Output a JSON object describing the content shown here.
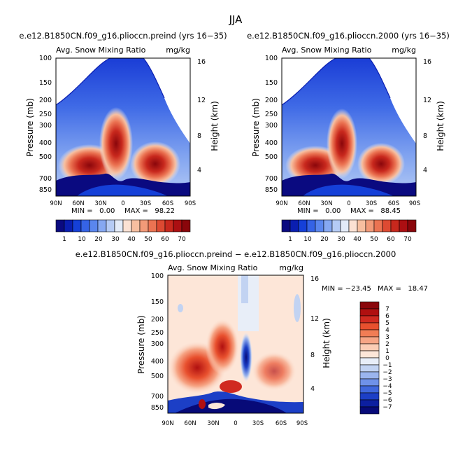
{
  "figure": {
    "title": "JJA"
  },
  "chart_data": [
    {
      "type": "heatmap",
      "title": "e.e12.B1850CN.f09_g16.plioccn.preind (yrs 16−35)",
      "subtitle_left": "Avg. Snow Mixing Ratio",
      "units": "mg/kg",
      "ylabel": "Pressure (mb)",
      "ylabel_right": "Height (km)",
      "x_ticks": [
        "90N",
        "60N",
        "30N",
        "0",
        "30S",
        "60S",
        "90S"
      ],
      "y_ticks": [
        "100",
        "150",
        "200",
        "250",
        "300",
        "400",
        "500",
        "700",
        "850"
      ],
      "y_ticks_right": [
        "16",
        "12",
        "8",
        "4"
      ],
      "min_text": "MIN =   0.00",
      "max_text": "MAX =   98.22",
      "stats": {
        "min": 0.0,
        "max": 98.22
      },
      "colorbar_labels": [
        "1",
        "10",
        "20",
        "30",
        "40",
        "50",
        "60",
        "70"
      ]
    },
    {
      "type": "heatmap",
      "title": "e.e12.B1850CN.f09_g16.plioccn.2000 (yrs 16−35)",
      "subtitle_left": "Avg. Snow Mixing Ratio",
      "units": "mg/kg",
      "ylabel": "Pressure (mb)",
      "ylabel_right": "Height (km)",
      "x_ticks": [
        "90N",
        "60N",
        "30N",
        "0",
        "30S",
        "60S",
        "90S"
      ],
      "y_ticks": [
        "100",
        "150",
        "200",
        "250",
        "300",
        "400",
        "500",
        "700",
        "850"
      ],
      "y_ticks_right": [
        "16",
        "12",
        "8",
        "4"
      ],
      "min_text": "MIN =   0.00",
      "max_text": "MAX =   88.45",
      "stats": {
        "min": 0.0,
        "max": 88.45
      },
      "colorbar_labels": [
        "1",
        "10",
        "20",
        "30",
        "40",
        "50",
        "60",
        "70"
      ]
    },
    {
      "type": "heatmap",
      "title": "e.e12.B1850CN.f09_g16.plioccn.preind − e.e12.B1850CN.f09_g16.plioccn.2000",
      "subtitle_left": "Avg. Snow Mixing Ratio",
      "units": "mg/kg",
      "ylabel": "Pressure (mb)",
      "ylabel_right": "Height (km)",
      "x_ticks": [
        "90N",
        "60N",
        "30N",
        "0",
        "30S",
        "60S",
        "90S"
      ],
      "y_ticks": [
        "100",
        "150",
        "200",
        "250",
        "300",
        "400",
        "500",
        "700",
        "850"
      ],
      "y_ticks_right": [
        "16",
        "12",
        "8",
        "4"
      ],
      "min_text": "MIN = −23.45",
      "max_text": "MAX =   18.47",
      "stats": {
        "min": -23.45,
        "max": 18.47
      },
      "colorbar_labels": [
        "7",
        "6",
        "5",
        "4",
        "3",
        "2",
        "1",
        "0",
        "−1",
        "−2",
        "−3",
        "−4",
        "−5",
        "−6",
        "−7"
      ]
    }
  ],
  "colors": {
    "absolute_scale": [
      "#0a0a80",
      "#0a1eb0",
      "#1540d8",
      "#3563e6",
      "#5a86ee",
      "#86a8f2",
      "#b5cbf5",
      "#e3ebf8",
      "#fbe1d3",
      "#f7bfa0",
      "#f29a78",
      "#eb7352",
      "#dd4a32",
      "#c8281d",
      "#ab0f12",
      "#8a060b"
    ],
    "difference_scale": [
      "#8a060b",
      "#b01010",
      "#d02a20",
      "#e8502e",
      "#f17d55",
      "#f6a585",
      "#fbcdb5",
      "#fde6d8",
      "#e8eef8",
      "#c2d3f2",
      "#9bb5ee",
      "#6f92e9",
      "#4068dd",
      "#1c3fc6",
      "#0c1fa0",
      "#070a78"
    ]
  }
}
